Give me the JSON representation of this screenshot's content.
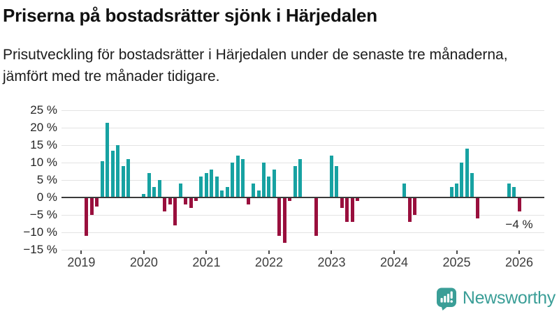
{
  "header": {
    "title": "Priserna på bostadsrätter sjönk i Härjedalen",
    "subtitle": "Prisutveckling för bostadsrätter i Härjedalen under de senaste tre månaderna, jämfört med tre månader tidigare."
  },
  "chart_data": {
    "type": "bar",
    "title": "Priserna på bostadsrätter sjönk i Härjedalen",
    "unit": "%",
    "ylim": [
      -15,
      25
    ],
    "grid": true,
    "ytick_values": [
      25,
      20,
      15,
      10,
      5,
      0,
      -5,
      -10,
      -15
    ],
    "ytick_labels": [
      "25 %",
      "20 %",
      "15 %",
      "10 %",
      "5 %",
      "0 %",
      "−5 %",
      "−10 %",
      "−15 %"
    ],
    "xtick_years": [
      2019,
      2020,
      2021,
      2022,
      2023,
      2024,
      2025,
      2026
    ],
    "xtick_labels": [
      "2019",
      "2020",
      "2021",
      "2022",
      "2023",
      "2024",
      "2025",
      "2026"
    ],
    "colors": {
      "positive": "#17a2a2",
      "negative": "#990f3d"
    },
    "annotation": {
      "text": "−4 %",
      "month": "2026-01",
      "value": -4
    },
    "points": [
      {
        "month": "2019-02",
        "value": -11
      },
      {
        "month": "2019-03",
        "value": -5
      },
      {
        "month": "2019-04",
        "value": -2.5
      },
      {
        "month": "2019-05",
        "value": 10.5
      },
      {
        "month": "2019-06",
        "value": 21.5
      },
      {
        "month": "2019-07",
        "value": 13.5
      },
      {
        "month": "2019-08",
        "value": 15
      },
      {
        "month": "2019-09",
        "value": 9
      },
      {
        "month": "2019-10",
        "value": 11
      },
      {
        "month": "2020-01",
        "value": 1
      },
      {
        "month": "2020-02",
        "value": 7
      },
      {
        "month": "2020-03",
        "value": 3
      },
      {
        "month": "2020-04",
        "value": 5
      },
      {
        "month": "2020-05",
        "value": -4
      },
      {
        "month": "2020-06",
        "value": -2
      },
      {
        "month": "2020-07",
        "value": -8
      },
      {
        "month": "2020-08",
        "value": 4
      },
      {
        "month": "2020-09",
        "value": -2
      },
      {
        "month": "2020-10",
        "value": -3
      },
      {
        "month": "2020-11",
        "value": -1
      },
      {
        "month": "2020-12",
        "value": 6
      },
      {
        "month": "2021-01",
        "value": 7
      },
      {
        "month": "2021-02",
        "value": 8
      },
      {
        "month": "2021-03",
        "value": 6
      },
      {
        "month": "2021-04",
        "value": 2
      },
      {
        "month": "2021-05",
        "value": 3
      },
      {
        "month": "2021-06",
        "value": 10
      },
      {
        "month": "2021-07",
        "value": 12
      },
      {
        "month": "2021-08",
        "value": 11
      },
      {
        "month": "2021-09",
        "value": -2
      },
      {
        "month": "2021-10",
        "value": 4
      },
      {
        "month": "2021-11",
        "value": 2
      },
      {
        "month": "2021-12",
        "value": 10
      },
      {
        "month": "2022-01",
        "value": 6
      },
      {
        "month": "2022-02",
        "value": 8
      },
      {
        "month": "2022-03",
        "value": -11
      },
      {
        "month": "2022-04",
        "value": -13
      },
      {
        "month": "2022-05",
        "value": -1
      },
      {
        "month": "2022-06",
        "value": 9
      },
      {
        "month": "2022-07",
        "value": 11
      },
      {
        "month": "2022-10",
        "value": -11
      },
      {
        "month": "2023-01",
        "value": 12
      },
      {
        "month": "2023-02",
        "value": 9
      },
      {
        "month": "2023-03",
        "value": -3
      },
      {
        "month": "2023-04",
        "value": -7
      },
      {
        "month": "2023-05",
        "value": -7
      },
      {
        "month": "2023-06",
        "value": -1
      },
      {
        "month": "2024-03",
        "value": 4
      },
      {
        "month": "2024-04",
        "value": -7
      },
      {
        "month": "2024-05",
        "value": -5
      },
      {
        "month": "2024-12",
        "value": 3
      },
      {
        "month": "2025-01",
        "value": 4
      },
      {
        "month": "2025-02",
        "value": 10
      },
      {
        "month": "2025-03",
        "value": 14
      },
      {
        "month": "2025-04",
        "value": 7
      },
      {
        "month": "2025-05",
        "value": -6
      },
      {
        "month": "2025-11",
        "value": 4
      },
      {
        "month": "2025-12",
        "value": 3
      },
      {
        "month": "2026-01",
        "value": -4
      }
    ]
  },
  "branding": {
    "name": "Newsworthy",
    "color": "#3a9e97",
    "icon": "newsworthy-speech-bubble-bar-chart-icon"
  }
}
